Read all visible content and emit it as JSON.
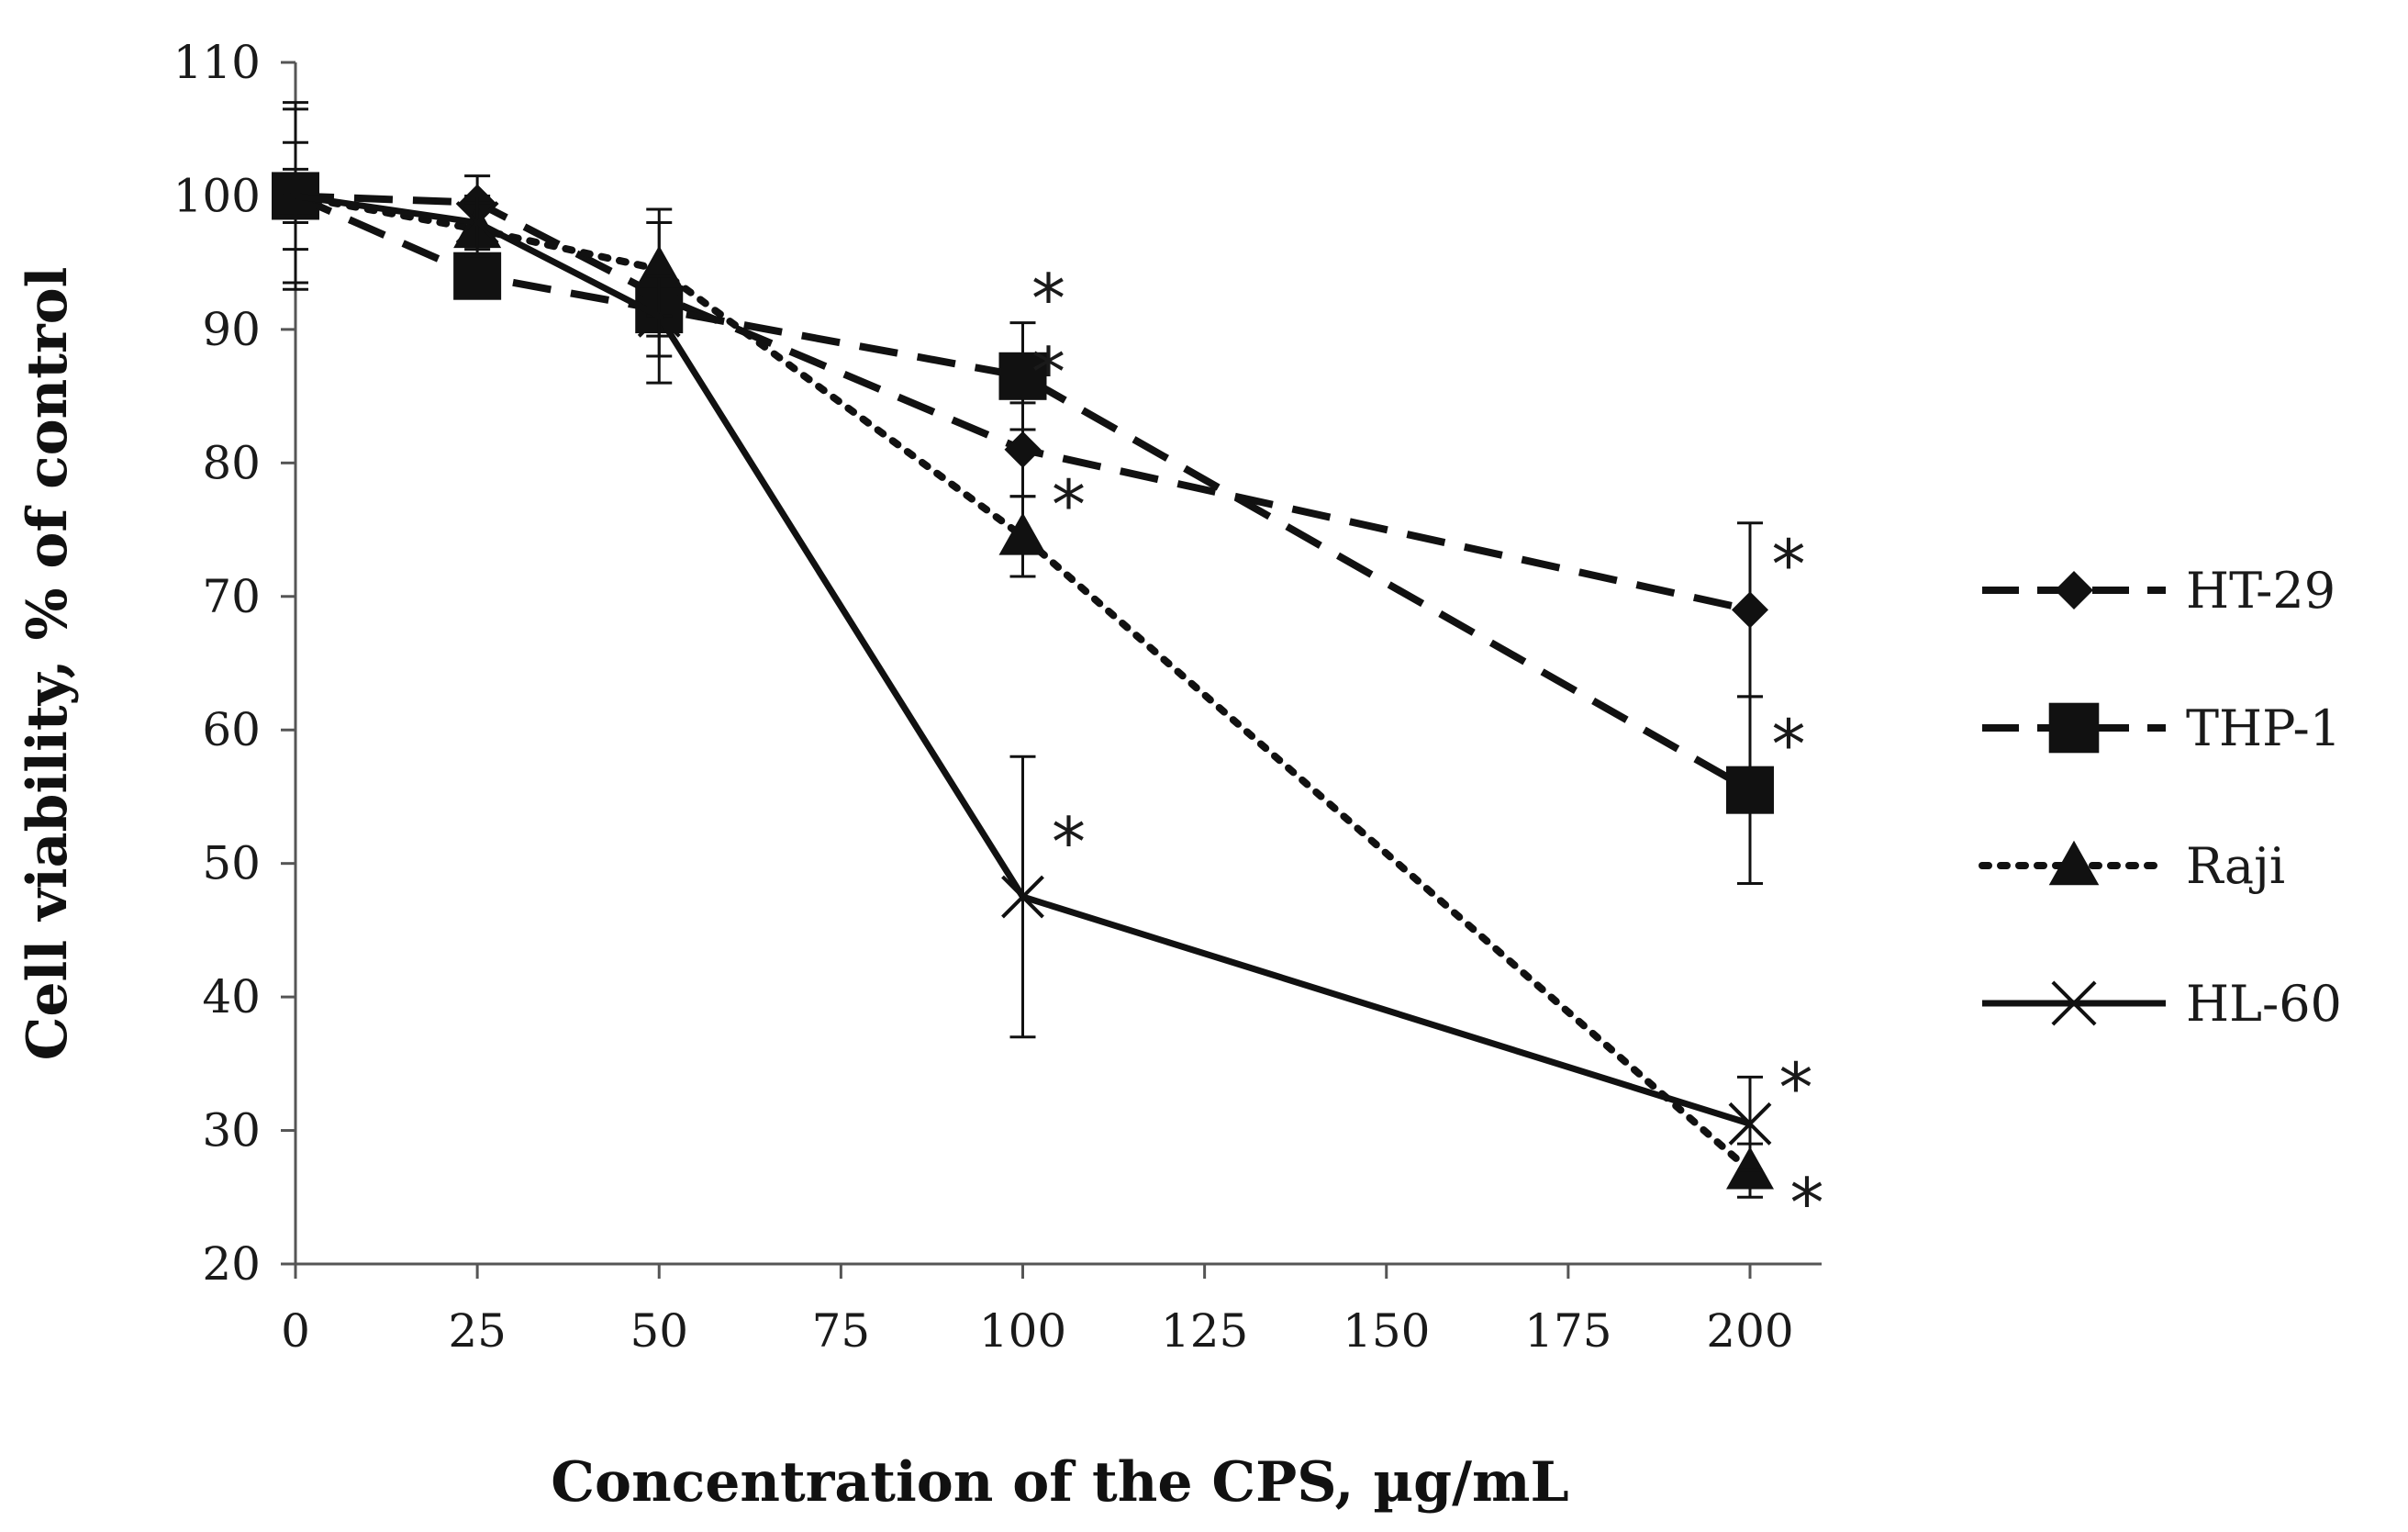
{
  "chart_data": {
    "type": "line",
    "title": "",
    "xlabel": "Concentration of the CPS, µg/mL",
    "ylabel": "Cell viability, % of control",
    "xlim": [
      0,
      210
    ],
    "ylim": [
      20,
      110
    ],
    "xticks": [
      0,
      25,
      50,
      75,
      100,
      125,
      150,
      175,
      200
    ],
    "yticks": [
      20,
      30,
      40,
      50,
      60,
      70,
      80,
      90,
      100,
      110
    ],
    "x": [
      0,
      25,
      50,
      100,
      200
    ],
    "grid": false,
    "legend_position": "right",
    "significance_mark": "*",
    "series": [
      {
        "name": "HT-29",
        "marker": "diamond",
        "line": "dashed",
        "values": [
          100,
          99.5,
          92.5,
          81,
          69
        ],
        "errors": [
          6.5,
          2,
          6.5,
          3.5,
          6.5
        ],
        "significant": [
          false,
          false,
          false,
          true,
          true
        ]
      },
      {
        "name": "THP-1",
        "marker": "square",
        "line": "dashed",
        "values": [
          100,
          94,
          91.5,
          86.5,
          55.5
        ],
        "errors": [
          4,
          1.5,
          2,
          4,
          7
        ],
        "significant": [
          false,
          false,
          false,
          true,
          true
        ]
      },
      {
        "name": "Raji",
        "marker": "triangle",
        "line": "dotted",
        "values": [
          100,
          97.5,
          94.5,
          74.5,
          27
        ],
        "errors": [
          2,
          2,
          3.5,
          3,
          2
        ],
        "significant": [
          false,
          false,
          false,
          true,
          true
        ]
      },
      {
        "name": "HL-60",
        "marker": "x",
        "line": "solid",
        "values": [
          100,
          98,
          91,
          47.5,
          30.5
        ],
        "errors": [
          7,
          2,
          3,
          10.5,
          3.5
        ],
        "significant": [
          false,
          false,
          false,
          true,
          true
        ]
      }
    ]
  }
}
